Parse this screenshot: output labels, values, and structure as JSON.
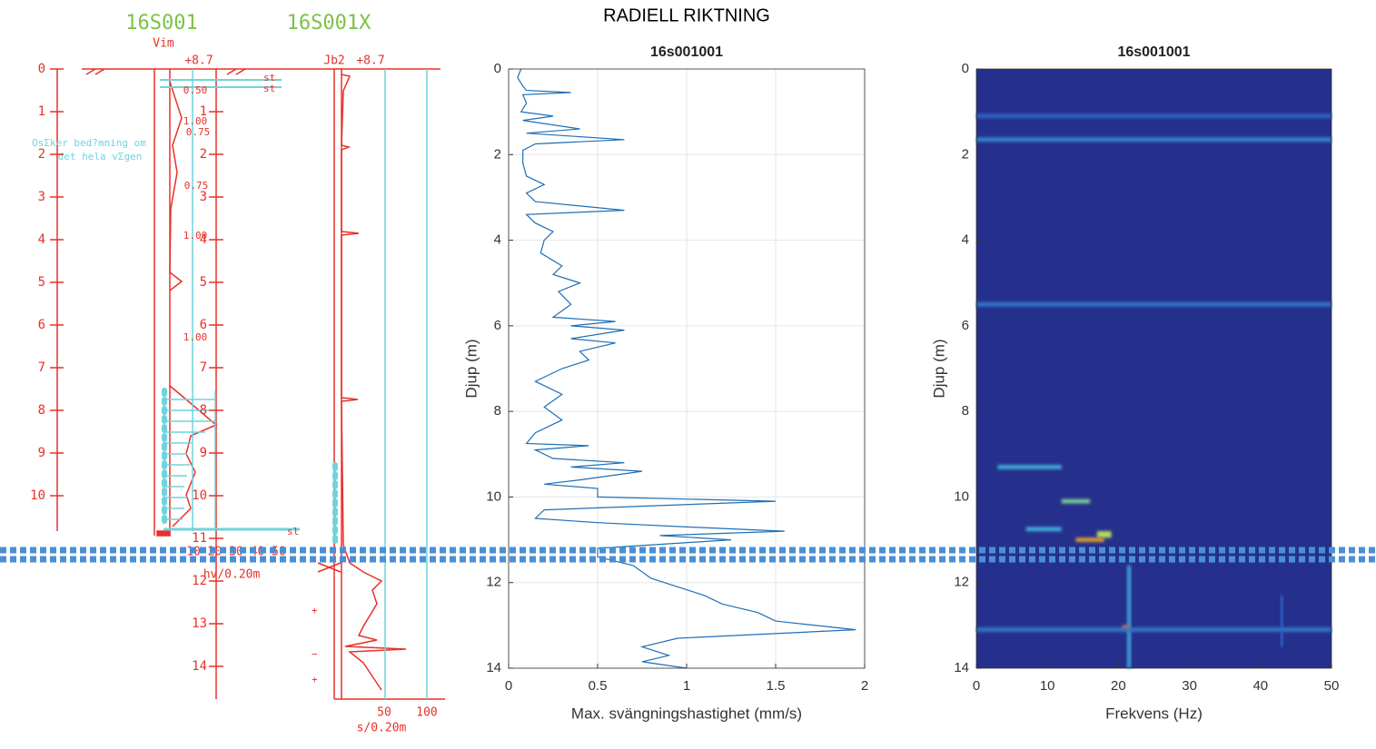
{
  "header": {
    "title": "RADIELL RIKTNING"
  },
  "log": {
    "titles": [
      "16S001",
      "16S001X"
    ],
    "labels": [
      "Vim",
      "+8.7",
      "Jb2",
      "+8.7"
    ],
    "depth_left": [
      0,
      1,
      2,
      3,
      4,
      5,
      6,
      7,
      8,
      9,
      10
    ],
    "depth_right": [
      1,
      2,
      3,
      4,
      5,
      6,
      7,
      8,
      9,
      10,
      11,
      12,
      13,
      14
    ],
    "notes": [
      "0.50",
      "1.00",
      "0.75",
      "0.75",
      "1.00",
      "1.00"
    ],
    "comment": [
      "OsΣker bed?mning om",
      "det hela vΣgen"
    ],
    "markers": [
      "st",
      "st",
      "sl",
      "+",
      "−",
      "+"
    ],
    "scale_left": "10 20 30 40 50",
    "unit_left": "hv/0.20m",
    "scale_right": [
      "50",
      "100"
    ],
    "unit_right": "s/0.20m"
  },
  "chart_data": [
    {
      "type": "line",
      "title": "16s001001",
      "xlabel": "Max. svängningshastighet (mm/s)",
      "ylabel": "Djup (m)",
      "xlim": [
        0,
        2
      ],
      "ylim": [
        0,
        14
      ],
      "y_reversed": true,
      "xticks": [
        0,
        0.5,
        1,
        1.5,
        2
      ],
      "yticks": [
        0,
        2,
        4,
        6,
        8,
        10,
        12,
        14
      ],
      "grid": true,
      "color": "#1f6fb5",
      "depth": [
        0,
        0.2,
        0.4,
        0.5,
        0.55,
        0.6,
        0.8,
        1.0,
        1.1,
        1.2,
        1.4,
        1.5,
        1.65,
        1.75,
        1.9,
        2.2,
        2.5,
        2.7,
        2.9,
        3.1,
        3.3,
        3.4,
        3.6,
        3.8,
        4.0,
        4.3,
        4.6,
        4.8,
        5.0,
        5.2,
        5.5,
        5.8,
        5.9,
        6.0,
        6.1,
        6.3,
        6.4,
        6.6,
        6.8,
        7.0,
        7.3,
        7.6,
        7.9,
        8.2,
        8.5,
        8.75,
        8.8,
        8.9,
        9.1,
        9.2,
        9.3,
        9.4,
        9.6,
        9.7,
        9.8,
        10.0,
        10.1,
        10.3,
        10.5,
        10.6,
        10.7,
        10.8,
        10.9,
        11.0,
        11.2,
        11.4,
        11.6,
        11.9,
        12.1,
        12.3,
        12.5,
        12.7,
        12.9,
        13.1,
        13.3,
        13.5,
        13.7,
        13.85,
        14.0
      ],
      "values": [
        0.07,
        0.05,
        0.08,
        0.1,
        0.35,
        0.08,
        0.1,
        0.07,
        0.25,
        0.08,
        0.4,
        0.1,
        0.65,
        0.15,
        0.08,
        0.08,
        0.1,
        0.2,
        0.1,
        0.15,
        0.65,
        0.1,
        0.15,
        0.25,
        0.2,
        0.18,
        0.3,
        0.25,
        0.4,
        0.28,
        0.35,
        0.25,
        0.6,
        0.35,
        0.65,
        0.35,
        0.6,
        0.4,
        0.45,
        0.3,
        0.15,
        0.3,
        0.2,
        0.3,
        0.15,
        0.1,
        0.45,
        0.15,
        0.25,
        0.65,
        0.35,
        0.75,
        0.4,
        0.2,
        0.5,
        0.5,
        1.5,
        0.2,
        0.15,
        0.5,
        1.0,
        1.55,
        0.85,
        1.25,
        0.5,
        0.5,
        0.7,
        0.8,
        0.95,
        1.1,
        1.2,
        1.4,
        1.5,
        1.95,
        0.95,
        0.75,
        0.9,
        0.75,
        1.0
      ]
    },
    {
      "type": "heatmap",
      "title": "16s001001",
      "xlabel": "Frekvens (Hz)",
      "ylabel": "Djup (m)",
      "xlim": [
        0,
        50
      ],
      "ylim": [
        0,
        14
      ],
      "y_reversed": true,
      "xticks": [
        0,
        10,
        20,
        30,
        40,
        50
      ],
      "yticks": [
        0,
        2,
        4,
        6,
        8,
        10,
        12,
        14
      ],
      "colormap": [
        "#25308c",
        "#2f63c9",
        "#3fc0d8",
        "#d8e63a",
        "#e8301f"
      ],
      "patches": [
        {
          "depth": [
            1.05,
            1.15
          ],
          "freq": [
            0,
            50
          ],
          "intensity": 0.25
        },
        {
          "depth": [
            1.6,
            1.7
          ],
          "freq": [
            0,
            50
          ],
          "intensity": 0.35
        },
        {
          "depth": [
            5.45,
            5.55
          ],
          "freq": [
            0,
            50
          ],
          "intensity": 0.3
        },
        {
          "depth": [
            9.25,
            9.35
          ],
          "freq": [
            3,
            12
          ],
          "intensity": 0.45
        },
        {
          "depth": [
            10.05,
            10.15
          ],
          "freq": [
            12,
            16
          ],
          "intensity": 0.6
        },
        {
          "depth": [
            10.7,
            10.8
          ],
          "freq": [
            7,
            12
          ],
          "intensity": 0.45
        },
        {
          "depth": [
            10.8,
            10.95
          ],
          "freq": [
            17,
            19
          ],
          "intensity": 0.7
        },
        {
          "depth": [
            10.95,
            11.05
          ],
          "freq": [
            14,
            18
          ],
          "intensity": 0.85
        },
        {
          "depth": [
            11.6,
            14
          ],
          "freq": [
            21.2,
            21.8
          ],
          "intensity": 0.4
        },
        {
          "depth": [
            13.0,
            13.1
          ],
          "freq": [
            20.5,
            21.5
          ],
          "intensity": 0.9
        },
        {
          "depth": [
            13.05,
            13.15
          ],
          "freq": [
            0,
            50
          ],
          "intensity": 0.3
        },
        {
          "depth": [
            12.3,
            13.5
          ],
          "freq": [
            42.8,
            43.2
          ],
          "intensity": 0.25
        }
      ]
    }
  ]
}
